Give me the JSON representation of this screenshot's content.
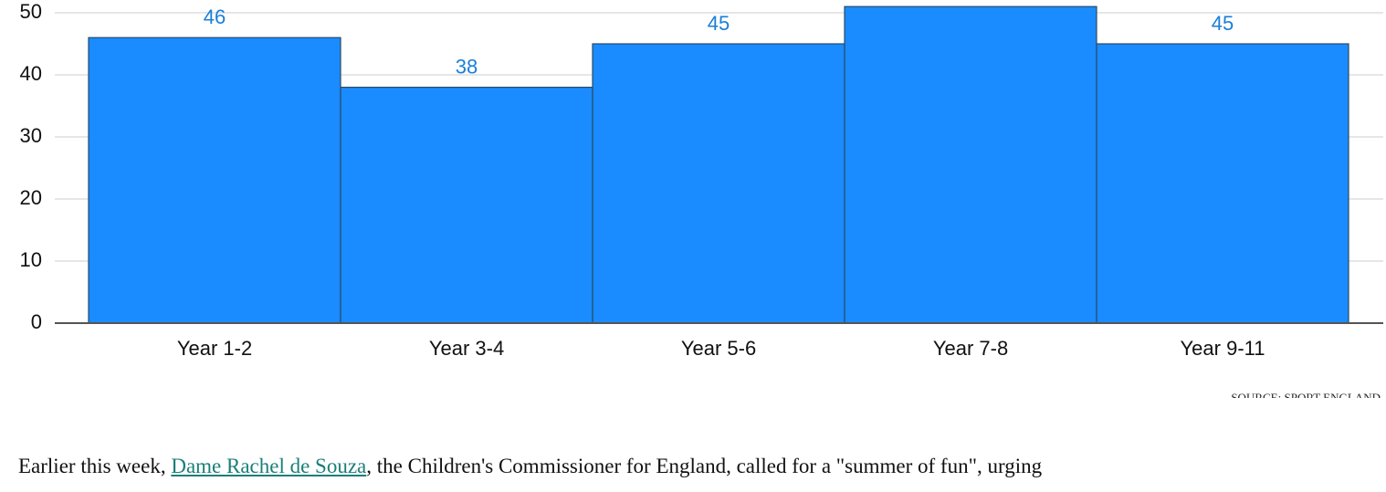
{
  "chart_data": {
    "type": "bar",
    "categories": [
      "Year 1-2",
      "Year 3-4",
      "Year 5-6",
      "Year 7-8",
      "Year 9-11"
    ],
    "values": [
      46,
      38,
      45,
      51,
      45
    ],
    "color": "#1a8cff",
    "ylim": [
      0,
      50
    ],
    "yticks": [
      0,
      10,
      20,
      30,
      40,
      50
    ],
    "grid": true,
    "source": "SOURCE: SPORT ENGLAND"
  },
  "paragraph": {
    "before": "Earlier this week, ",
    "link": "Dame Rachel de Souza",
    "after": ", the Children's Commissioner for England, called for a \"summer of fun\", urging"
  }
}
